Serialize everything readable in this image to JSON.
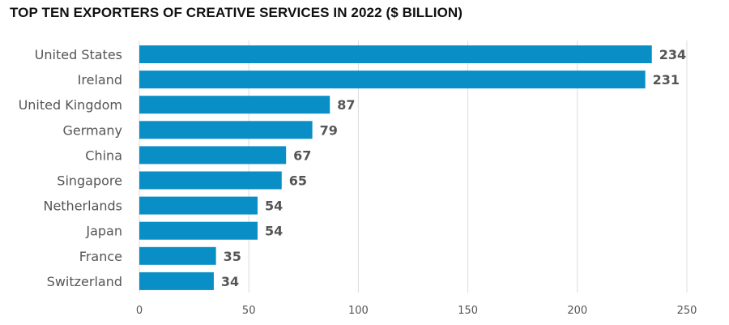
{
  "chart_data": {
    "type": "bar",
    "orientation": "horizontal",
    "title": "TOP TEN EXPORTERS OF CREATIVE SERVICES IN 2022 ($ BILLION)",
    "categories": [
      "United States",
      "Ireland",
      "United Kingdom",
      "Germany",
      "China",
      "Singapore",
      "Netherlands",
      "Japan",
      "France",
      "Switzerland"
    ],
    "values": [
      234,
      231,
      87,
      79,
      67,
      65,
      54,
      54,
      35,
      34
    ],
    "xlim": [
      0,
      250
    ],
    "xticks": [
      0,
      50,
      100,
      150,
      200,
      250
    ],
    "xlabel": "",
    "ylabel": "",
    "grid": true,
    "bar_color": "#0a8ec6"
  }
}
